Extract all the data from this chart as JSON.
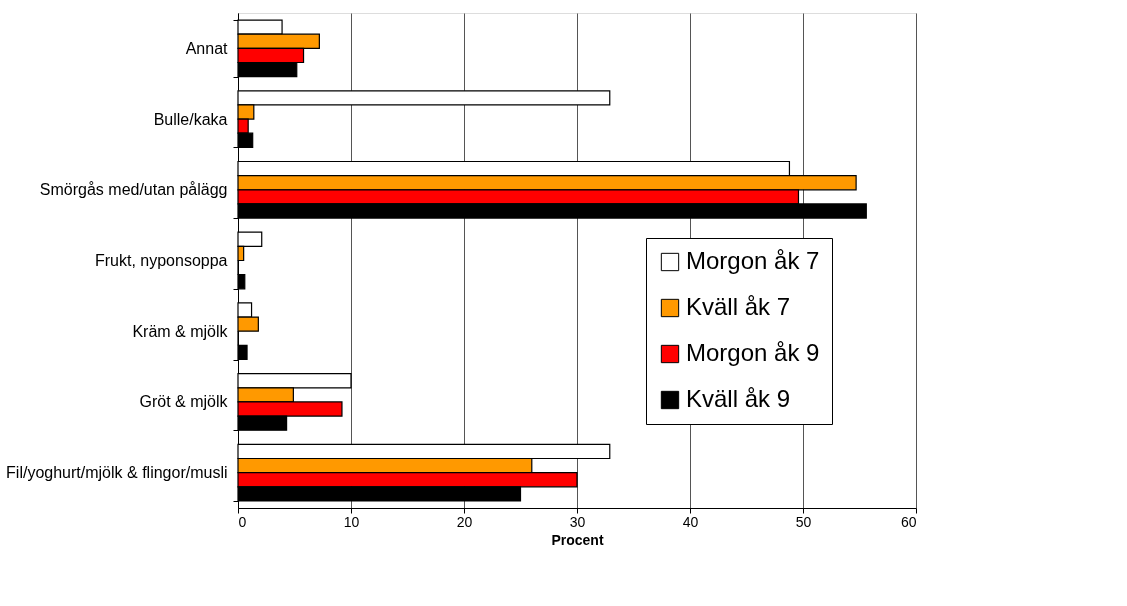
{
  "chart_data": {
    "type": "bar",
    "orientation": "horizontal",
    "xlabel": "Procent",
    "categories": [
      "Annat",
      "Bulle/kaka",
      "Smörgås med/utan pålägg",
      "Frukt, nyponsoppa",
      "Kräm & mjölk",
      "Gröt & mjölk",
      "Fil/yoghurt/mjölk & flingor/musli"
    ],
    "series": [
      {
        "name": "Morgon åk 7",
        "color": "#ffffff",
        "values": [
          3.9,
          32.9,
          48.8,
          2.1,
          1.2,
          10.0,
          32.9
        ]
      },
      {
        "name": "Kväll åk 7",
        "color": "#ff9900",
        "values": [
          7.2,
          1.4,
          54.7,
          0.5,
          1.8,
          4.9,
          26.0
        ]
      },
      {
        "name": "Morgon åk 9",
        "color": "#ff0000",
        "values": [
          5.8,
          0.9,
          49.6,
          0,
          0,
          9.2,
          30.0
        ]
      },
      {
        "name": "Kväll åk 9",
        "color": "#000000",
        "values": [
          5.2,
          1.3,
          55.6,
          0.6,
          0.8,
          4.3,
          25.0
        ]
      }
    ],
    "xlim": [
      0,
      60
    ],
    "xticks": [
      0,
      10,
      20,
      30,
      40,
      50,
      60
    ],
    "grid": "x",
    "legend": "bottom right"
  }
}
